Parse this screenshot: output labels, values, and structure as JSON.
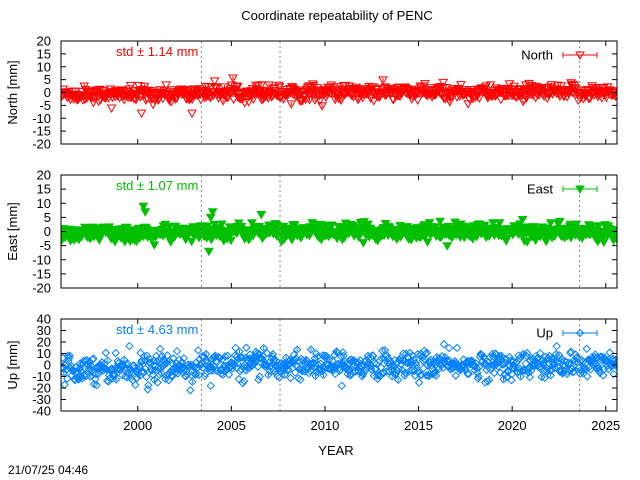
{
  "figure": {
    "title": "Coordinate repeatability of PENC",
    "timestamp": "21/07/25 04:46",
    "xlabel": "YEAR"
  },
  "chart_data": [
    {
      "type": "scatter",
      "name": "north-panel",
      "ylabel": "North [mm]",
      "legend": "North",
      "legend_position": "top-right",
      "std_label": "std ± 1.14 mm",
      "std": 1.14,
      "color": "#ff0000",
      "marker": "triangle-down",
      "xlim": [
        1995.9,
        2025.6
      ],
      "ylim": [
        -20,
        20
      ],
      "yticks": [
        20,
        15,
        10,
        5,
        0,
        -5,
        -10,
        -15,
        -20
      ],
      "vlines": [
        2003.4,
        2007.6,
        2023.6
      ],
      "outliers": [
        {
          "x": 1998.6,
          "y": -6
        },
        {
          "x": 2000.2,
          "y": -8
        },
        {
          "x": 2002.9,
          "y": -8
        },
        {
          "x": 2006.6,
          "y": 3
        }
      ]
    },
    {
      "type": "scatter",
      "name": "east-panel",
      "ylabel": "East [mm]",
      "legend": "East",
      "legend_position": "top-right",
      "std_label": "std ± 1.07 mm",
      "std": 1.07,
      "color": "#00c000",
      "marker": "triangle-down-filled",
      "xlim": [
        1995.9,
        2025.6
      ],
      "ylim": [
        -20,
        20
      ],
      "yticks": [
        20,
        15,
        10,
        5,
        0,
        -5,
        -10,
        -15,
        -20
      ],
      "vlines": [
        2003.4,
        2007.6,
        2023.6
      ],
      "outliers": [
        {
          "x": 2000.3,
          "y": 9
        },
        {
          "x": 2000.4,
          "y": 7
        },
        {
          "x": 2004.0,
          "y": 7
        },
        {
          "x": 2003.9,
          "y": 5
        },
        {
          "x": 2003.8,
          "y": -7
        },
        {
          "x": 2006.6,
          "y": 6
        }
      ]
    },
    {
      "type": "scatter",
      "name": "up-panel",
      "ylabel": "Up [mm]",
      "legend": "Up",
      "legend_position": "top-right",
      "std_label": "std ± 4.63 mm",
      "std": 4.63,
      "color": "#0080ff",
      "marker": "diamond",
      "xlim": [
        1995.9,
        2025.6
      ],
      "ylim": [
        -40,
        40
      ],
      "yticks": [
        40,
        30,
        20,
        10,
        0,
        -10,
        -20,
        -30,
        -40
      ],
      "vlines": [
        2003.4,
        2007.6,
        2023.6
      ],
      "outliers": [
        {
          "x": 2002.1,
          "y": 12
        },
        {
          "x": 2003.9,
          "y": -18
        },
        {
          "x": 2005.8,
          "y": 15
        },
        {
          "x": 2010.9,
          "y": -18
        }
      ]
    }
  ],
  "xticks": [
    2000,
    2005,
    2010,
    2015,
    2020,
    2025
  ]
}
